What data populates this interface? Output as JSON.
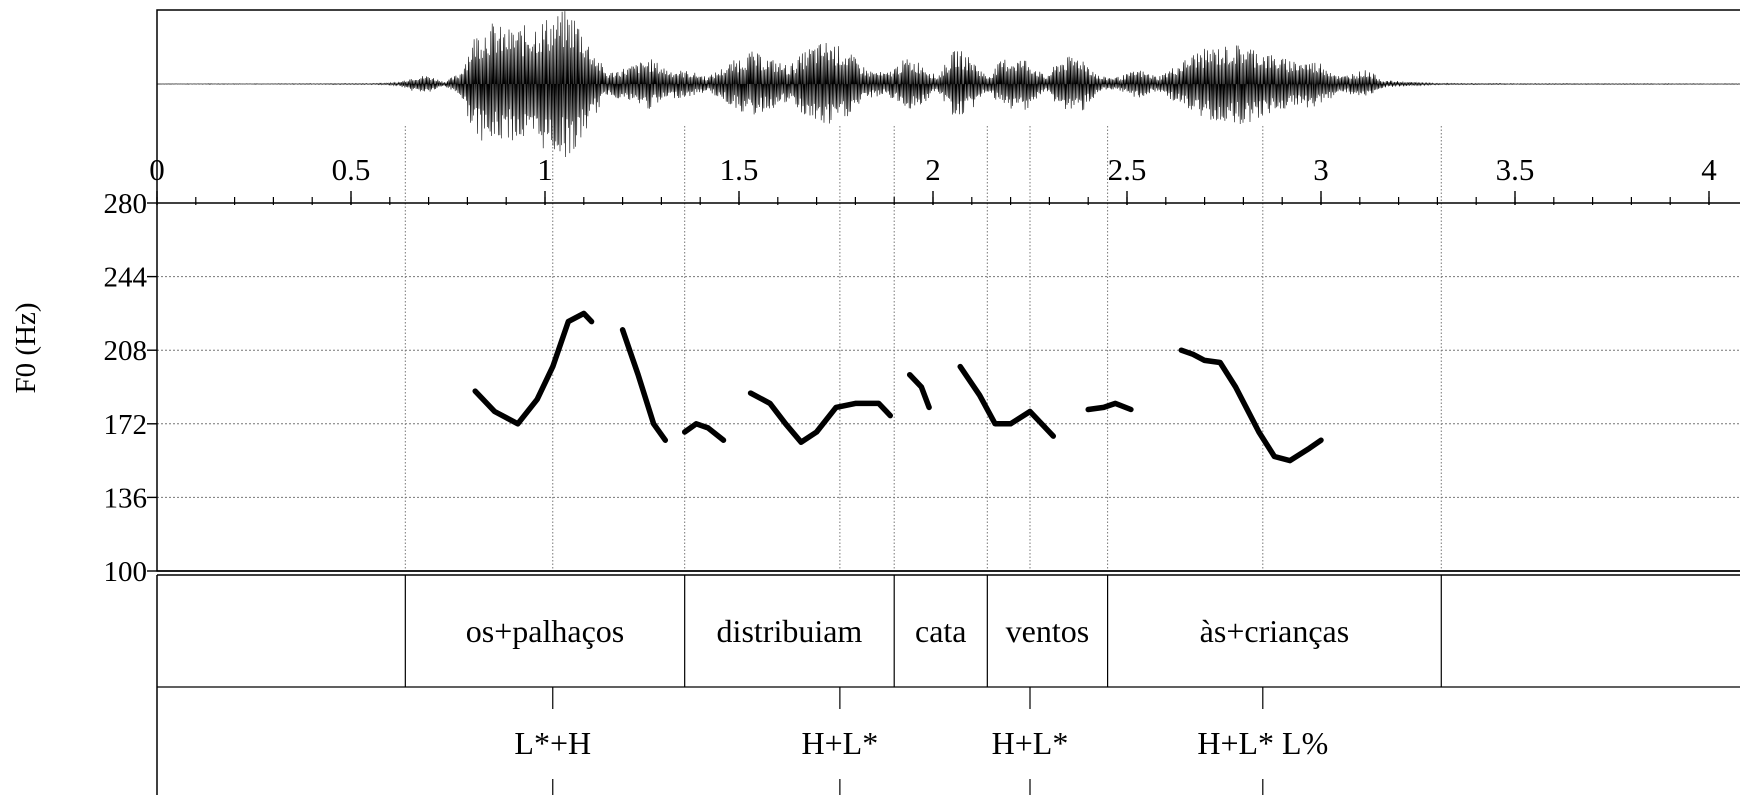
{
  "chart_data": {
    "type": "line",
    "title": "",
    "ylabel": "F0 (Hz)",
    "xlabel": "",
    "x_range": [
      0,
      4.2
    ],
    "ylim": [
      100,
      280
    ],
    "x_ticks": [
      0,
      0.5,
      1,
      1.5,
      2,
      2.5,
      3,
      3.5,
      4
    ],
    "x_tick_labels": [
      "0",
      "0.5",
      "1",
      "1.5",
      "2",
      "2.5",
      "3",
      "3.5",
      "4"
    ],
    "y_ticks": [
      100,
      136,
      172,
      208,
      244,
      280
    ],
    "y_tick_labels": [
      "100",
      "136",
      "172",
      "208",
      "244",
      "280"
    ],
    "grid": true,
    "waveform": {
      "envelope": [
        [
          0.0,
          0.002
        ],
        [
          0.1,
          0.004
        ],
        [
          0.3,
          0.004
        ],
        [
          0.55,
          0.008
        ],
        [
          0.62,
          0.02
        ],
        [
          0.66,
          0.1
        ],
        [
          0.7,
          0.12
        ],
        [
          0.74,
          0.03
        ],
        [
          0.78,
          0.15
        ],
        [
          0.82,
          0.7
        ],
        [
          0.86,
          0.85
        ],
        [
          0.9,
          0.75
        ],
        [
          0.95,
          0.8
        ],
        [
          1.0,
          0.9
        ],
        [
          1.05,
          1.0
        ],
        [
          1.08,
          0.95
        ],
        [
          1.11,
          0.6
        ],
        [
          1.16,
          0.15
        ],
        [
          1.22,
          0.25
        ],
        [
          1.27,
          0.35
        ],
        [
          1.32,
          0.2
        ],
        [
          1.37,
          0.18
        ],
        [
          1.42,
          0.1
        ],
        [
          1.48,
          0.3
        ],
        [
          1.53,
          0.45
        ],
        [
          1.58,
          0.35
        ],
        [
          1.63,
          0.25
        ],
        [
          1.68,
          0.5
        ],
        [
          1.73,
          0.6
        ],
        [
          1.78,
          0.45
        ],
        [
          1.83,
          0.2
        ],
        [
          1.88,
          0.15
        ],
        [
          1.93,
          0.35
        ],
        [
          1.97,
          0.3
        ],
        [
          2.01,
          0.1
        ],
        [
          2.06,
          0.5
        ],
        [
          2.1,
          0.35
        ],
        [
          2.14,
          0.1
        ],
        [
          2.18,
          0.35
        ],
        [
          2.24,
          0.35
        ],
        [
          2.29,
          0.1
        ],
        [
          2.33,
          0.35
        ],
        [
          2.38,
          0.4
        ],
        [
          2.43,
          0.1
        ],
        [
          2.48,
          0.1
        ],
        [
          2.53,
          0.2
        ],
        [
          2.58,
          0.1
        ],
        [
          2.64,
          0.3
        ],
        [
          2.68,
          0.45
        ],
        [
          2.72,
          0.5
        ],
        [
          2.8,
          0.55
        ],
        [
          2.9,
          0.35
        ],
        [
          3.0,
          0.3
        ],
        [
          3.05,
          0.1
        ],
        [
          3.08,
          0.15
        ],
        [
          3.12,
          0.2
        ],
        [
          3.16,
          0.05
        ],
        [
          3.3,
          0.01
        ],
        [
          3.5,
          0.006
        ],
        [
          4.2,
          0.004
        ]
      ]
    },
    "series": [
      {
        "name": "F0",
        "segments": [
          [
            [
              0.82,
              188
            ],
            [
              0.87,
              178
            ],
            [
              0.93,
              172
            ],
            [
              0.98,
              184
            ],
            [
              1.02,
              200
            ],
            [
              1.06,
              222
            ],
            [
              1.1,
              226
            ],
            [
              1.12,
              222
            ]
          ],
          [
            [
              1.2,
              218
            ],
            [
              1.24,
              196
            ],
            [
              1.28,
              172
            ],
            [
              1.31,
              164
            ]
          ],
          [
            [
              1.36,
              168
            ],
            [
              1.39,
              172
            ],
            [
              1.42,
              170
            ],
            [
              1.46,
              164
            ]
          ],
          [
            [
              1.53,
              187
            ],
            [
              1.58,
              182
            ],
            [
              1.62,
              172
            ],
            [
              1.66,
              163
            ],
            [
              1.7,
              168
            ],
            [
              1.75,
              180
            ],
            [
              1.8,
              182
            ],
            [
              1.86,
              182
            ],
            [
              1.89,
              176
            ]
          ],
          [
            [
              1.94,
              196
            ],
            [
              1.97,
              190
            ],
            [
              1.99,
              180
            ]
          ],
          [
            [
              2.07,
              200
            ],
            [
              2.12,
              186
            ],
            [
              2.16,
              172
            ],
            [
              2.2,
              172
            ],
            [
              2.25,
              178
            ],
            [
              2.31,
              166
            ]
          ],
          [
            [
              2.4,
              179
            ],
            [
              2.44,
              180
            ],
            [
              2.47,
              182
            ],
            [
              2.51,
              179
            ]
          ],
          [
            [
              2.64,
              208
            ],
            [
              2.67,
              206
            ],
            [
              2.7,
              203
            ],
            [
              2.74,
              202
            ],
            [
              2.78,
              190
            ],
            [
              2.84,
              168
            ],
            [
              2.88,
              156
            ],
            [
              2.92,
              154
            ],
            [
              2.97,
              160
            ],
            [
              3.0,
              164
            ]
          ]
        ]
      }
    ],
    "word_tier": {
      "boundaries": [
        0.64,
        1.36,
        1.9,
        2.14,
        2.45,
        3.31
      ],
      "intervals": [
        {
          "label": "os+palhaços",
          "start": 0.64,
          "end": 1.36
        },
        {
          "label": "distribuiam",
          "start": 1.36,
          "end": 1.9
        },
        {
          "label": "cata",
          "start": 1.9,
          "end": 2.14
        },
        {
          "label": "ventos",
          "start": 2.14,
          "end": 2.45
        },
        {
          "label": "às+crianças",
          "start": 2.45,
          "end": 3.31
        }
      ]
    },
    "tone_tier": {
      "points": [
        {
          "time": 1.02,
          "label": "L*+H"
        },
        {
          "time": 1.76,
          "label": "H+L*"
        },
        {
          "time": 2.25,
          "label": "H+L*"
        },
        {
          "time": 2.85,
          "label": "H+L* L%"
        }
      ]
    }
  }
}
